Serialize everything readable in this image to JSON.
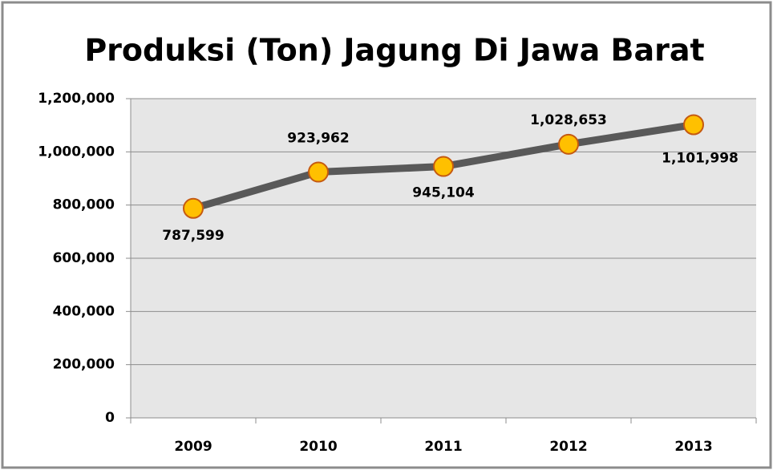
{
  "chart_data": {
    "type": "line",
    "title": "Produksi (Ton) Jagung Di Jawa Barat",
    "categories": [
      "2009",
      "2010",
      "2011",
      "2012",
      "2013"
    ],
    "series": [
      {
        "name": "Produksi",
        "color": "#595959",
        "marker_color": "#ffc000",
        "values": [
          787599,
          923962,
          945104,
          1028653,
          1101998
        ],
        "value_labels": [
          "787,599",
          "923,962",
          "945,104",
          "1,028,653",
          "1,101,998"
        ]
      }
    ],
    "ylim": [
      0,
      1200000
    ],
    "yticks": [
      0,
      {
        "value": 200000,
        "label": "200,000"
      },
      {
        "value": 400000,
        "label": "400,000"
      },
      {
        "value": 600000,
        "label": "600,000"
      },
      {
        "value": 800000,
        "label": "800,000"
      },
      {
        "value": 1000000,
        "label": "1,000,000"
      },
      {
        "value": 1200000,
        "label": "1,200,000"
      }
    ],
    "grid": true
  }
}
